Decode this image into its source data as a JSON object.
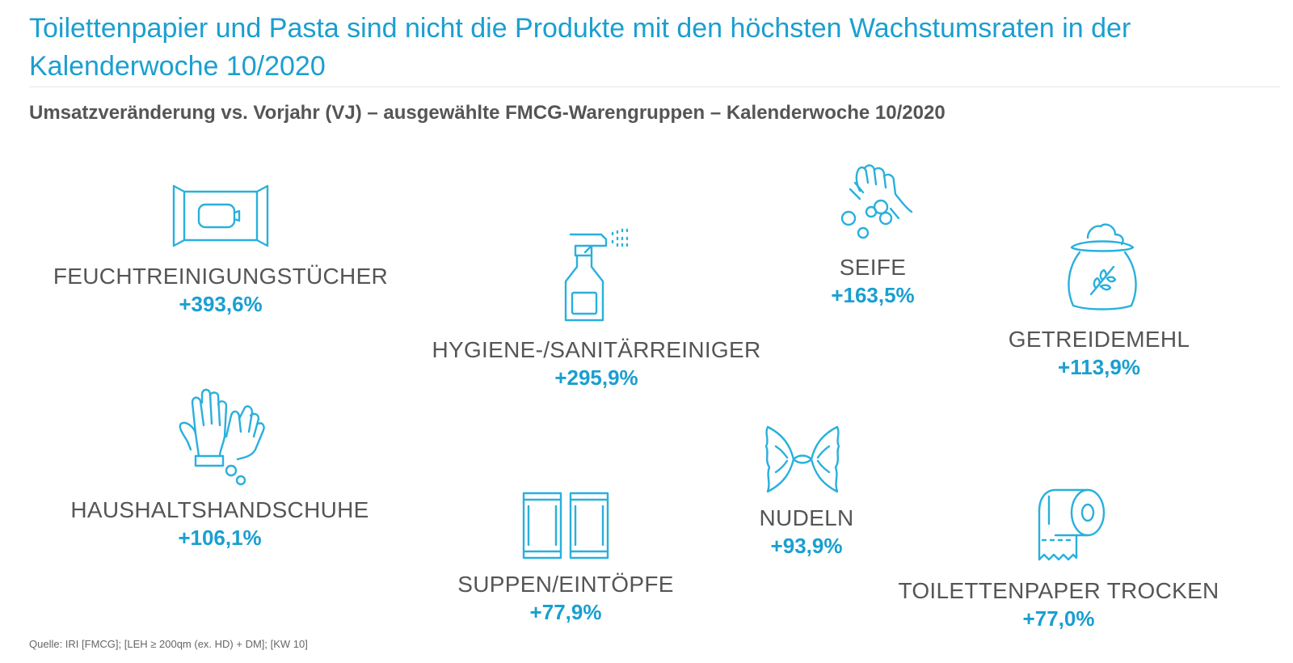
{
  "header": {
    "title": "Toilettenpapier und Pasta sind nicht die Produkte mit den höchsten Wachstumsraten in der Kalenderwoche 10/2020",
    "subtitle": "Umsatzveränderung vs. Vorjahr (VJ) – ausgewählte FMCG-Warengruppen – Kalenderwoche 10/2020"
  },
  "colors": {
    "accent": "#1a9fd0",
    "icon": "#29b0dd",
    "text": "#555555"
  },
  "chart_data": {
    "type": "table",
    "categories": [
      "FEUCHTREINIGUNGSTÜCHER",
      "HYGIENE-/SANITÄRREINIGER",
      "SEIFE",
      "GETREIDEMEHL",
      "HAUSHALTSHANDSCHUHE",
      "NUDELN",
      "SUPPEN/EINTÖPFE",
      "TOILETTENPAPER TROCKEN"
    ],
    "values": [
      393.6,
      295.9,
      163.5,
      113.9,
      106.1,
      93.9,
      77.9,
      77.0
    ],
    "value_labels": [
      "+393,6%",
      "+295,9%",
      "+163,5%",
      "+113,9%",
      "+106,1%",
      "+93,9%",
      "+77,9%",
      "+77,0%"
    ],
    "icons": [
      "wet-wipes-icon",
      "spray-bottle-icon",
      "soap-hands-icon",
      "flour-sack-icon",
      "gloves-icon",
      "pasta-icon",
      "cans-icon",
      "toilet-paper-icon"
    ]
  },
  "footer": {
    "source": "Quelle: IRI [FMCG]; [LEH ≥ 200qm (ex. HD) + DM]; [KW 10]"
  }
}
